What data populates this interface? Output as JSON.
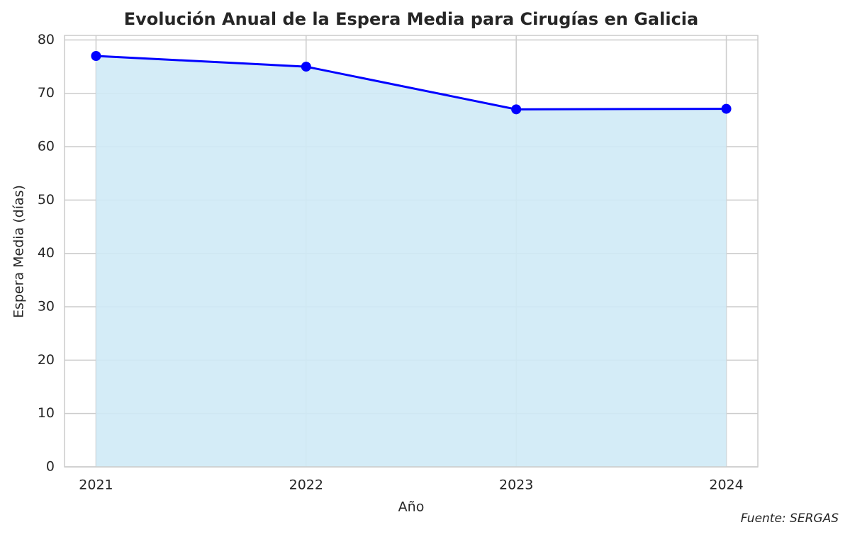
{
  "chart_data": {
    "type": "line",
    "title": "Evolución Anual de la Espera Media para Cirugías en Galicia",
    "x_label": "Año",
    "y_label": "Espera Media (días)",
    "annotation": "Fuente: SERGAS",
    "x": [
      2021,
      2022,
      2023,
      2024
    ],
    "values": [
      77,
      75,
      67,
      67.1
    ],
    "color": "#0000ff",
    "fill_color": "#cfeaf6",
    "xlim": [
      2020.85,
      2024.15
    ],
    "xticks": [
      2021,
      2022,
      2023,
      2024
    ],
    "ylim": [
      0,
      80.85
    ],
    "yticks": [
      0,
      10,
      20,
      30,
      40,
      50,
      60,
      70,
      80
    ],
    "grid": true
  }
}
